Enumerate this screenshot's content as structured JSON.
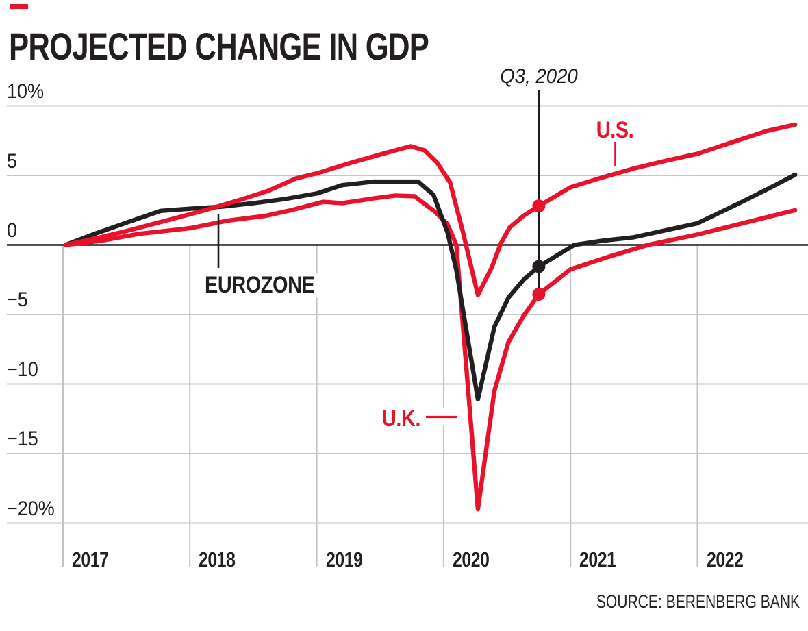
{
  "page": {
    "background": "#ffffff",
    "accent_color": "#e8132b",
    "ink_color": "#231f20"
  },
  "footer": {
    "source": "SOURCE: BERENBERG BANK"
  },
  "chart_data": {
    "type": "line",
    "title": "PROJECTED CHANGE IN GDP",
    "unit": "percent",
    "ylabel": "",
    "xlabel": "",
    "ylim": [
      -22,
      11
    ],
    "xlim": [
      2017,
      2022.9
    ],
    "grid": "on",
    "legend_position": "inline-labels",
    "yticks": [
      {
        "value": 10,
        "label": "10%"
      },
      {
        "value": 5,
        "label": "5"
      },
      {
        "value": 0,
        "label": "0"
      },
      {
        "value": -5,
        "label": "−5"
      },
      {
        "value": -10,
        "label": "−10"
      },
      {
        "value": -15,
        "label": "−15"
      },
      {
        "value": -20,
        "label": "−20%"
      }
    ],
    "xticks": [
      {
        "value": 2017,
        "label": "2017"
      },
      {
        "value": 2018,
        "label": "2018"
      },
      {
        "value": 2019,
        "label": "2019"
      },
      {
        "value": 2020,
        "label": "2020"
      },
      {
        "value": 2021,
        "label": "2021"
      },
      {
        "value": 2022,
        "label": "2022"
      }
    ],
    "series": [
      {
        "name": "U.S.",
        "color": "#e8132b",
        "points": [
          [
            2017.02,
            0
          ],
          [
            2017.25,
            0.45
          ],
          [
            2017.5,
            1.0
          ],
          [
            2017.75,
            1.6
          ],
          [
            2018.0,
            2.2
          ],
          [
            2018.16,
            2.6
          ],
          [
            2018.4,
            3.25
          ],
          [
            2018.62,
            3.9
          ],
          [
            2018.84,
            4.8
          ],
          [
            2019.0,
            5.15
          ],
          [
            2019.25,
            5.85
          ],
          [
            2019.5,
            6.5
          ],
          [
            2019.74,
            7.1
          ],
          [
            2019.85,
            6.8
          ],
          [
            2019.95,
            5.9
          ],
          [
            2020.05,
            4.5
          ],
          [
            2020.15,
            1.0
          ],
          [
            2020.27,
            -3.6
          ],
          [
            2020.38,
            -1.6
          ],
          [
            2020.45,
            0.1
          ],
          [
            2020.52,
            1.25
          ],
          [
            2020.63,
            2.1
          ],
          [
            2020.75,
            2.8
          ],
          [
            2021.0,
            4.15
          ],
          [
            2021.25,
            4.85
          ],
          [
            2021.5,
            5.5
          ],
          [
            2021.75,
            6.05
          ],
          [
            2022.0,
            6.55
          ],
          [
            2022.33,
            7.55
          ],
          [
            2022.55,
            8.2
          ],
          [
            2022.77,
            8.65
          ]
        ]
      },
      {
        "name": "EUROZONE",
        "color": "#231f20",
        "points": [
          [
            2017.02,
            0
          ],
          [
            2017.25,
            0.8
          ],
          [
            2017.5,
            1.6
          ],
          [
            2017.77,
            2.45
          ],
          [
            2018.0,
            2.6
          ],
          [
            2018.25,
            2.75
          ],
          [
            2018.5,
            3.0
          ],
          [
            2018.75,
            3.3
          ],
          [
            2019.0,
            3.7
          ],
          [
            2019.2,
            4.3
          ],
          [
            2019.45,
            4.55
          ],
          [
            2019.8,
            4.55
          ],
          [
            2019.92,
            3.6
          ],
          [
            2020.03,
            0.9
          ],
          [
            2020.1,
            -1.8
          ],
          [
            2020.27,
            -11.1
          ],
          [
            2020.4,
            -5.9
          ],
          [
            2020.51,
            -3.8
          ],
          [
            2020.63,
            -2.5
          ],
          [
            2020.75,
            -1.55
          ],
          [
            2021.03,
            0.0
          ],
          [
            2021.25,
            0.3
          ],
          [
            2021.5,
            0.55
          ],
          [
            2022.0,
            1.55
          ],
          [
            2022.33,
            3.0
          ],
          [
            2022.55,
            4.0
          ],
          [
            2022.77,
            5.05
          ]
        ]
      },
      {
        "name": "U.K.",
        "color": "#e8132b",
        "points": [
          [
            2017.02,
            0
          ],
          [
            2017.3,
            0.3
          ],
          [
            2017.6,
            0.8
          ],
          [
            2018.0,
            1.2
          ],
          [
            2018.3,
            1.75
          ],
          [
            2018.6,
            2.1
          ],
          [
            2018.8,
            2.5
          ],
          [
            2019.05,
            3.1
          ],
          [
            2019.2,
            3.0
          ],
          [
            2019.45,
            3.35
          ],
          [
            2019.62,
            3.55
          ],
          [
            2019.77,
            3.5
          ],
          [
            2019.93,
            2.4
          ],
          [
            2020.03,
            1.5
          ],
          [
            2020.1,
            0.0
          ],
          [
            2020.27,
            -19.0
          ],
          [
            2020.4,
            -10.5
          ],
          [
            2020.51,
            -7.0
          ],
          [
            2020.63,
            -5.1
          ],
          [
            2020.75,
            -3.55
          ],
          [
            2021.0,
            -1.75
          ],
          [
            2021.3,
            -0.85
          ],
          [
            2021.61,
            0.0
          ],
          [
            2022.0,
            0.75
          ],
          [
            2022.33,
            1.5
          ],
          [
            2022.77,
            2.5
          ]
        ]
      }
    ],
    "series_labels": [
      {
        "text": "U.S.",
        "color": "#e8132b"
      },
      {
        "text": "EUROZONE",
        "color": "#231f20"
      },
      {
        "text": "U.K.",
        "color": "#e8132b"
      }
    ],
    "annotation": {
      "label": "Q3, 2020",
      "x": 2020.75,
      "markers": [
        {
          "series": "U.S.",
          "value": 2.8
        },
        {
          "series": "EUROZONE",
          "value": -1.55
        },
        {
          "series": "U.K.",
          "value": -3.55
        }
      ]
    }
  }
}
